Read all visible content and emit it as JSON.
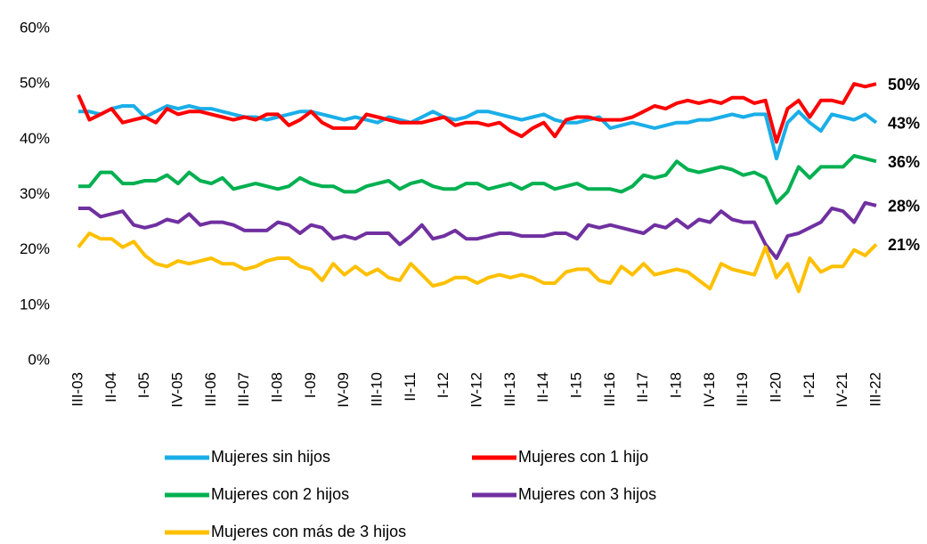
{
  "chart_data": {
    "type": "line",
    "categories": [
      "III-03",
      null,
      null,
      "II-04",
      null,
      null,
      "I-05",
      null,
      null,
      "IV-05",
      null,
      null,
      "III-06",
      null,
      null,
      "III-07",
      null,
      null,
      "II-08",
      null,
      null,
      "I-09",
      null,
      null,
      "IV-09",
      null,
      null,
      "III-10",
      null,
      null,
      "II-11",
      null,
      null,
      "I-12",
      null,
      null,
      "IV-12",
      null,
      null,
      "III-13",
      null,
      null,
      "II-14",
      null,
      null,
      "I-15",
      null,
      null,
      "III-16",
      null,
      null,
      "II-17",
      null,
      null,
      "I-18",
      null,
      null,
      "IV-18",
      null,
      null,
      "III-19",
      null,
      null,
      "II-20",
      null,
      null,
      "I-21",
      null,
      null,
      "IV-21",
      null,
      null,
      "III-22"
    ],
    "ylim": [
      0,
      60
    ],
    "yticks": [
      {
        "value": 0,
        "label": "0%"
      },
      {
        "value": 10,
        "label": "10%"
      },
      {
        "value": 20,
        "label": "20%"
      },
      {
        "value": 30,
        "label": "30%"
      },
      {
        "value": 40,
        "label": "40%"
      },
      {
        "value": 50,
        "label": "50%"
      },
      {
        "value": 60,
        "label": "60%"
      }
    ],
    "series": [
      {
        "name": "Mujeres sin hijos",
        "color": "#1aaee8",
        "values": [
          45,
          45,
          44.5,
          45.5,
          46,
          46,
          44,
          45,
          46,
          45.5,
          46,
          45.5,
          45.5,
          45,
          44.5,
          44,
          44,
          43.5,
          44,
          44.5,
          45,
          45,
          44.5,
          44,
          43.5,
          44,
          43.5,
          43,
          44,
          43.5,
          43,
          44,
          45,
          44,
          43.5,
          44,
          45,
          45,
          44.5,
          44,
          43.5,
          44,
          44.5,
          43.5,
          43,
          43,
          43.5,
          44,
          42,
          42.5,
          43,
          42.5,
          42,
          42.5,
          43,
          43,
          43.5,
          43.5,
          44,
          44.5,
          44,
          44.5,
          44.5,
          36.5,
          43,
          45,
          43,
          41.5,
          44.5,
          44,
          43.5,
          44.5,
          43
        ],
        "value_labels": [
          null,
          null,
          null,
          null,
          null,
          null,
          null,
          null,
          null,
          null,
          null,
          null,
          null,
          null,
          null,
          null,
          null,
          null,
          null,
          null,
          null,
          null,
          null,
          null,
          null,
          null,
          null,
          null,
          null,
          null,
          null,
          null,
          null,
          null,
          null,
          null,
          null,
          null,
          null,
          null,
          null,
          null,
          null,
          null,
          null,
          null,
          null,
          null,
          null,
          null,
          null,
          null,
          null,
          null,
          null,
          null,
          null,
          null,
          null,
          null,
          null,
          null,
          null,
          null,
          null,
          null,
          null,
          null,
          null,
          null,
          null,
          null,
          "43%"
        ]
      },
      {
        "name": "Mujeres con 1 hijo",
        "color": "#ff0000",
        "values": [
          48,
          43.5,
          44.5,
          45.5,
          43,
          43.5,
          44,
          43,
          45.5,
          44.5,
          45,
          45,
          44.5,
          44,
          43.5,
          44,
          43.5,
          44.5,
          44.5,
          42.5,
          43.5,
          45,
          43,
          42,
          42,
          42,
          44.5,
          44,
          43.5,
          43,
          43,
          43,
          43.5,
          44,
          42.5,
          43,
          43,
          42.5,
          43,
          41.5,
          40.5,
          42,
          43,
          40.5,
          43.5,
          44,
          44,
          43.5,
          43.5,
          43.5,
          44,
          45,
          46,
          45.5,
          46.5,
          47,
          46.5,
          47,
          46.5,
          47.5,
          47.5,
          46.5,
          47,
          39.5,
          45.5,
          47,
          44,
          47,
          47,
          46.5,
          50,
          49.5,
          50
        ],
        "value_labels": [
          null,
          null,
          null,
          null,
          null,
          null,
          null,
          null,
          null,
          null,
          null,
          null,
          null,
          null,
          null,
          null,
          null,
          null,
          null,
          null,
          null,
          null,
          null,
          null,
          null,
          null,
          null,
          null,
          null,
          null,
          null,
          null,
          null,
          null,
          null,
          null,
          null,
          null,
          null,
          null,
          null,
          null,
          null,
          null,
          null,
          null,
          null,
          null,
          null,
          null,
          null,
          null,
          null,
          null,
          null,
          null,
          null,
          null,
          null,
          null,
          null,
          null,
          null,
          null,
          null,
          null,
          null,
          null,
          null,
          null,
          null,
          null,
          "50%"
        ]
      },
      {
        "name": "Mujeres con 2 hijos",
        "color": "#00b050",
        "values": [
          31.5,
          31.5,
          34,
          34,
          32,
          32,
          32.5,
          32.5,
          33.5,
          32,
          34,
          32.5,
          32,
          33,
          31,
          31.5,
          32,
          31.5,
          31,
          31.5,
          33,
          32,
          31.5,
          31.5,
          30.5,
          30.5,
          31.5,
          32,
          32.5,
          31,
          32,
          32.5,
          31.5,
          31,
          31,
          32,
          32,
          31,
          31.5,
          32,
          31,
          32,
          32,
          31,
          31.5,
          32,
          31,
          31,
          31,
          30.5,
          31.5,
          33.5,
          33,
          33.5,
          36,
          34.5,
          34,
          34.5,
          35,
          34.5,
          33.5,
          34,
          33,
          28.5,
          30.5,
          35,
          33,
          35,
          35,
          35,
          37,
          36.5,
          36
        ],
        "value_labels": [
          null,
          null,
          null,
          null,
          null,
          null,
          null,
          null,
          null,
          null,
          null,
          null,
          null,
          null,
          null,
          null,
          null,
          null,
          null,
          null,
          null,
          null,
          null,
          null,
          null,
          null,
          null,
          null,
          null,
          null,
          null,
          null,
          null,
          null,
          null,
          null,
          null,
          null,
          null,
          null,
          null,
          null,
          null,
          null,
          null,
          null,
          null,
          null,
          null,
          null,
          null,
          null,
          null,
          null,
          null,
          null,
          null,
          null,
          null,
          null,
          null,
          null,
          null,
          null,
          null,
          null,
          null,
          null,
          null,
          null,
          null,
          null,
          "36%"
        ]
      },
      {
        "name": "Mujeres con 3 hijos",
        "color": "#7030a0",
        "values": [
          27.5,
          27.5,
          26,
          26.5,
          27,
          24.5,
          24,
          24.5,
          25.5,
          25,
          26.5,
          24.5,
          25,
          25,
          24.5,
          23.5,
          23.5,
          23.5,
          25,
          24.5,
          23,
          24.5,
          24,
          22,
          22.5,
          22,
          23,
          23,
          23,
          21,
          22.5,
          24.5,
          22,
          22.5,
          23.5,
          22,
          22,
          22.5,
          23,
          23,
          22.5,
          22.5,
          22.5,
          23,
          23,
          22,
          24.5,
          24,
          24.5,
          24,
          23.5,
          23,
          24.5,
          24,
          25.5,
          24,
          25.5,
          25,
          27,
          25.5,
          25,
          25,
          21,
          18.5,
          22.5,
          23,
          24,
          25,
          27.5,
          27,
          25,
          28.5,
          28
        ],
        "value_labels": [
          null,
          null,
          null,
          null,
          null,
          null,
          null,
          null,
          null,
          null,
          null,
          null,
          null,
          null,
          null,
          null,
          null,
          null,
          null,
          null,
          null,
          null,
          null,
          null,
          null,
          null,
          null,
          null,
          null,
          null,
          null,
          null,
          null,
          null,
          null,
          null,
          null,
          null,
          null,
          null,
          null,
          null,
          null,
          null,
          null,
          null,
          null,
          null,
          null,
          null,
          null,
          null,
          null,
          null,
          null,
          null,
          null,
          null,
          null,
          null,
          null,
          null,
          null,
          null,
          null,
          null,
          null,
          null,
          null,
          null,
          null,
          null,
          "28%"
        ]
      },
      {
        "name": "Mujeres con más de 3 hijos",
        "color": "#ffc000",
        "values": [
          20.5,
          23,
          22,
          22,
          20.5,
          21.5,
          19,
          17.5,
          17,
          18,
          17.5,
          18,
          18.5,
          17.5,
          17.5,
          16.5,
          17,
          18,
          18.5,
          18.5,
          17,
          16.5,
          14.5,
          17.5,
          15.5,
          17,
          15.5,
          16.5,
          15,
          14.5,
          17.5,
          15.5,
          13.5,
          14,
          15,
          15,
          14,
          15,
          15.5,
          15,
          15.5,
          15,
          14,
          14,
          16,
          16.5,
          16.5,
          14.5,
          14,
          17,
          15.5,
          17.5,
          15.5,
          16,
          16.5,
          16,
          14.5,
          13,
          17.5,
          16.5,
          16,
          15.5,
          20.5,
          15,
          17.5,
          12.5,
          18.5,
          16,
          17,
          17,
          20,
          19,
          21
        ],
        "value_labels": [
          null,
          null,
          null,
          null,
          null,
          null,
          null,
          null,
          null,
          null,
          null,
          null,
          null,
          null,
          null,
          null,
          null,
          null,
          null,
          null,
          null,
          null,
          null,
          null,
          null,
          null,
          null,
          null,
          null,
          null,
          null,
          null,
          null,
          null,
          null,
          null,
          null,
          null,
          null,
          null,
          null,
          null,
          null,
          null,
          null,
          null,
          null,
          null,
          null,
          null,
          null,
          null,
          null,
          null,
          null,
          null,
          null,
          null,
          null,
          null,
          null,
          null,
          null,
          null,
          null,
          null,
          null,
          null,
          null,
          null,
          null,
          null,
          "21%"
        ]
      }
    ]
  }
}
